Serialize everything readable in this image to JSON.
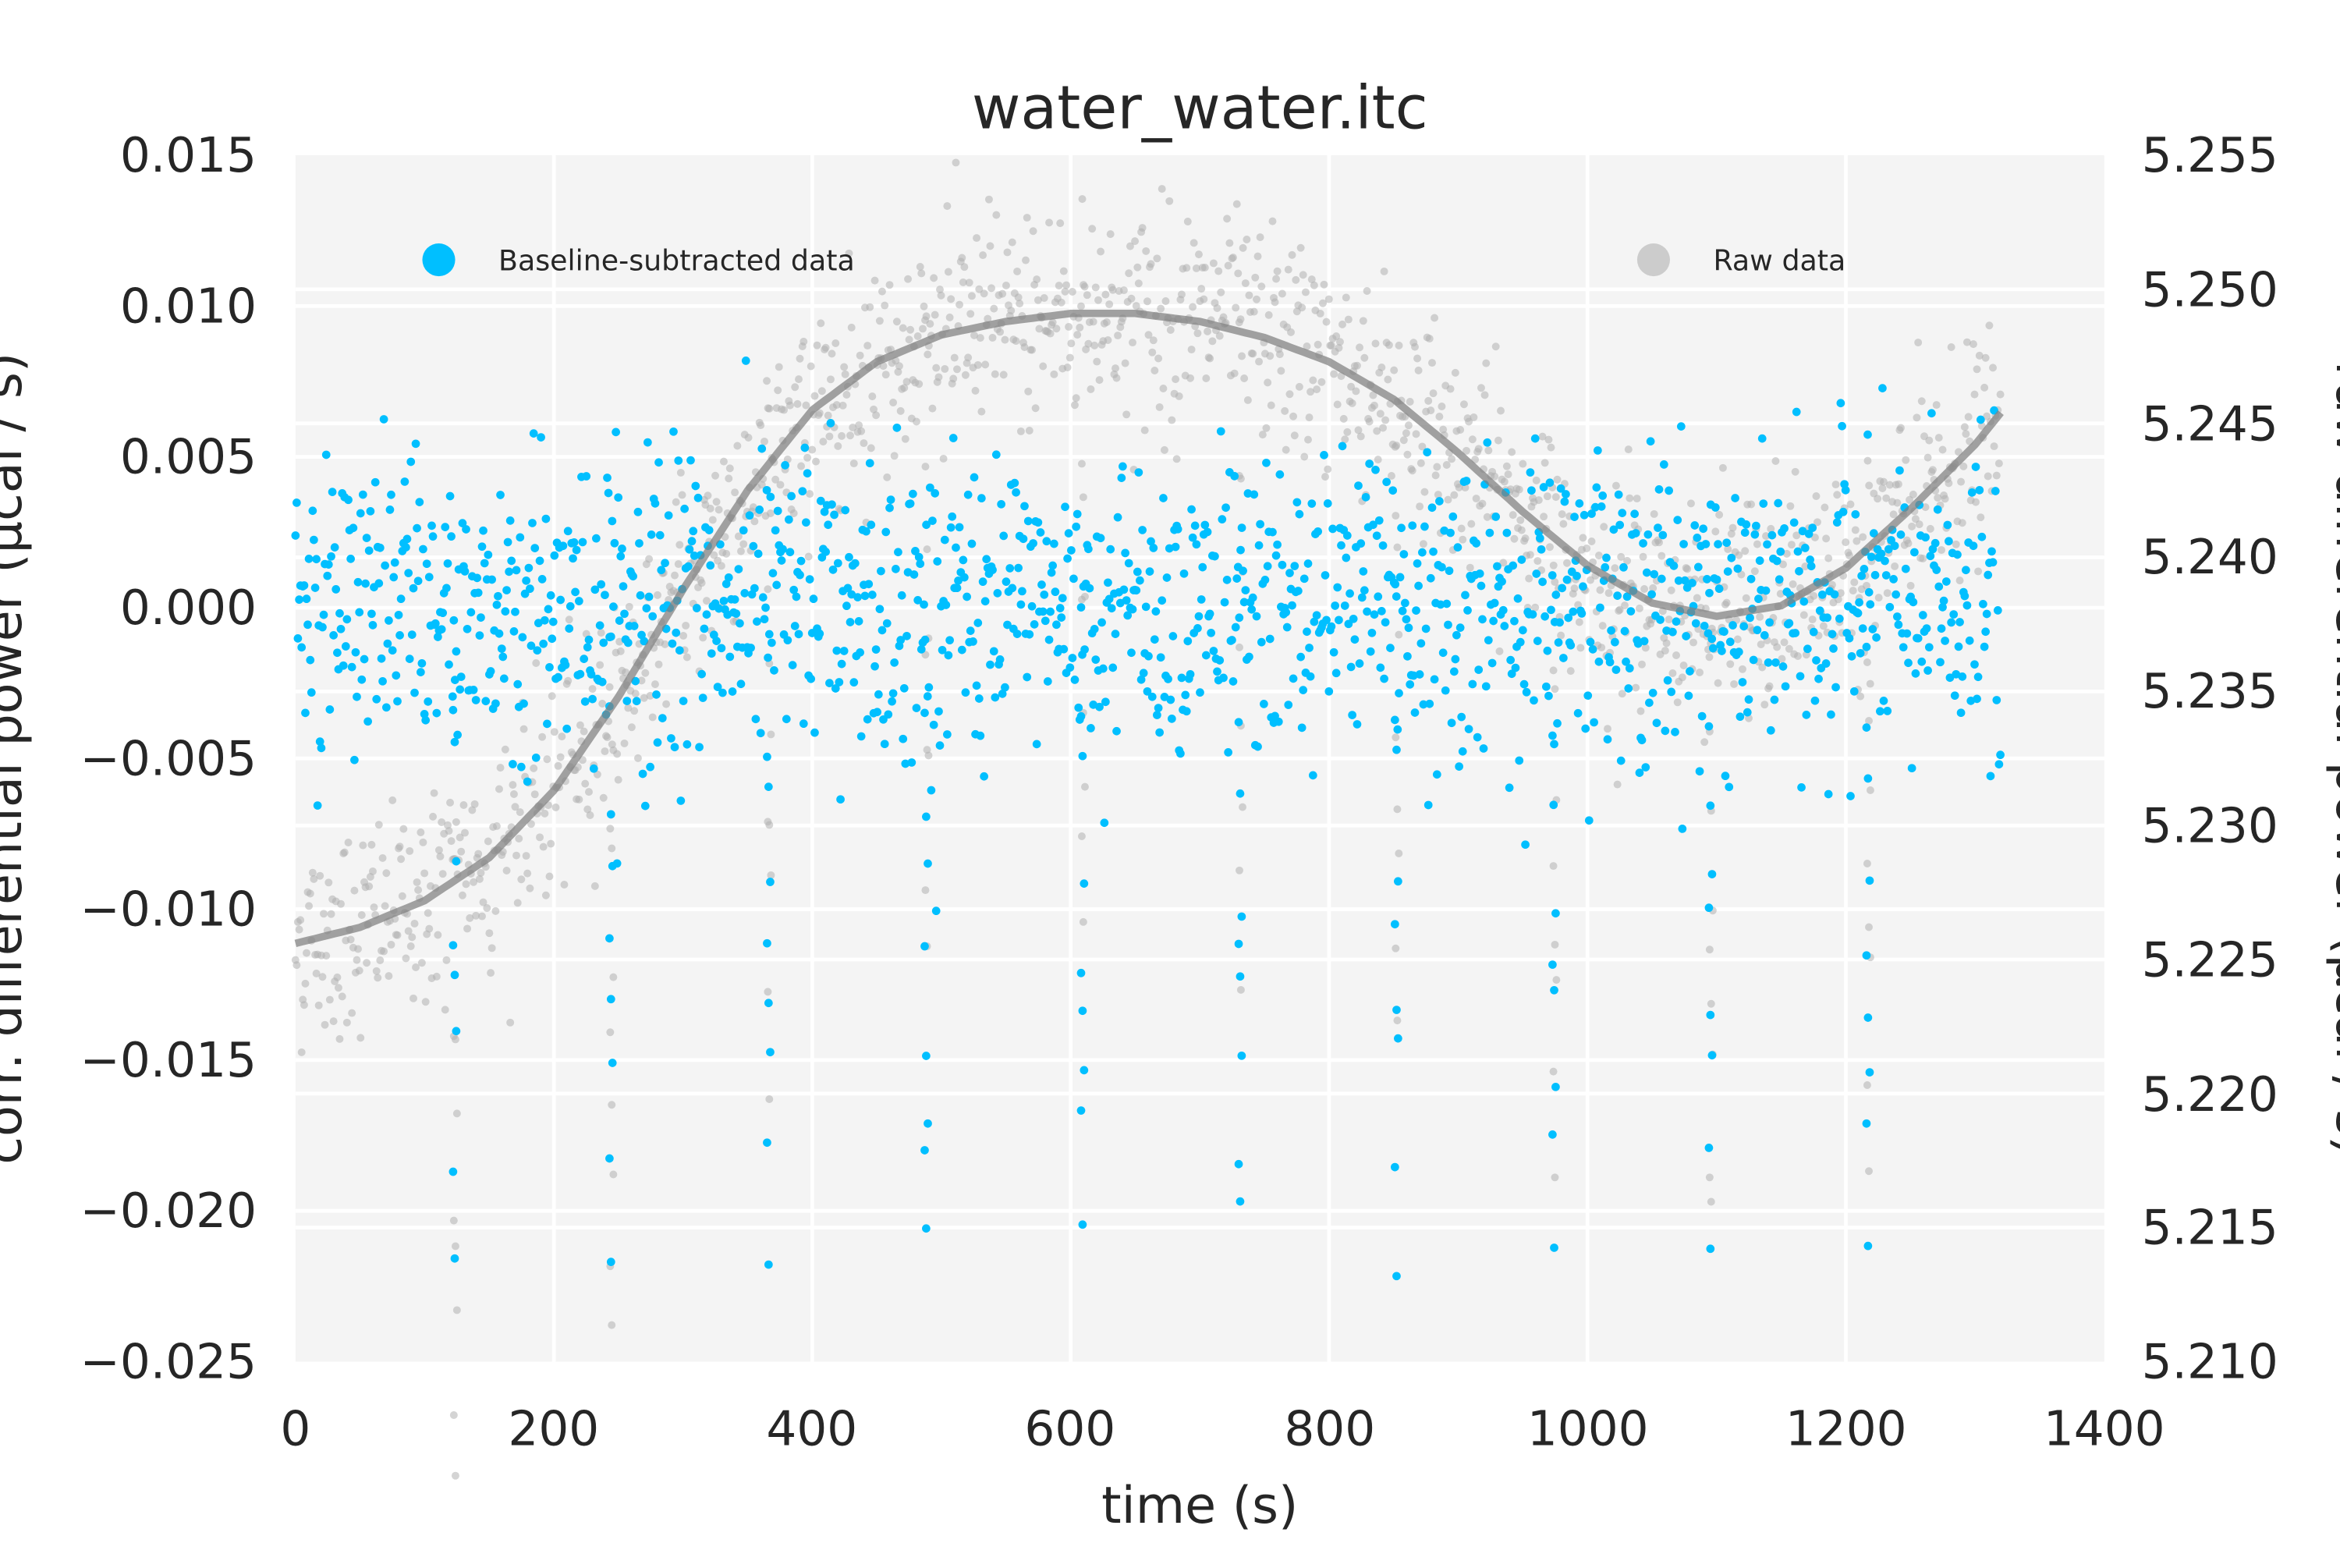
{
  "chart_data": {
    "type": "scatter",
    "title": "water_water.itc",
    "xlabel": "time (s)",
    "ylabel_left": "corr. differential power (μcal / s)",
    "ylabel_right": "raw differential power (μcal / s)",
    "xlim": [
      0,
      1400
    ],
    "ylim_left": [
      -0.025,
      0.015
    ],
    "ylim_right": [
      5.21,
      5.255
    ],
    "x_ticks": [
      "0",
      "200",
      "400",
      "600",
      "800",
      "1000",
      "1200",
      "1400"
    ],
    "y_left_ticks": [
      "0.015",
      "0.010",
      "0.005",
      "0.000",
      "−0.005",
      "−0.010",
      "−0.015",
      "−0.020",
      "−0.025"
    ],
    "y_right_ticks": [
      "5.255",
      "5.250",
      "5.245",
      "5.240",
      "5.235",
      "5.230",
      "5.225",
      "5.220",
      "5.215",
      "5.210"
    ],
    "grid": true,
    "legend": [
      {
        "label": "Baseline-subtracted data",
        "color": "#00bfff",
        "placement": "top-left"
      },
      {
        "label": "Raw data",
        "color": "#cccccc",
        "placement": "top-right"
      }
    ],
    "injection_times": [
      0,
      122,
      243,
      365,
      487,
      608,
      730,
      851,
      973,
      1094,
      1216
    ],
    "series": [
      {
        "name": "Baseline-subtracted data",
        "axis": "left",
        "color": "#00bfff",
        "noise_sd": 0.0025,
        "baseline": 0.0,
        "spike_offsets": [
          -0.004,
          -0.006,
          -0.009,
          -0.011,
          -0.013,
          -0.015,
          -0.018,
          -0.021
        ]
      },
      {
        "name": "Raw data",
        "axis": "right",
        "color": "#b0b0b0",
        "noise_sd": 0.002
      },
      {
        "name": "Baseline fit",
        "axis": "right",
        "color": "#8c8c8c",
        "x": [
          0,
          50,
          100,
          150,
          200,
          250,
          300,
          350,
          400,
          450,
          500,
          550,
          600,
          650,
          700,
          750,
          800,
          850,
          900,
          950,
          1000,
          1050,
          1100,
          1150,
          1200,
          1250,
          1300,
          1320
        ],
        "y": [
          5.2256,
          5.2262,
          5.2272,
          5.2288,
          5.2313,
          5.2348,
          5.2388,
          5.2425,
          5.2455,
          5.2473,
          5.2483,
          5.2488,
          5.2491,
          5.2491,
          5.2488,
          5.2482,
          5.2473,
          5.2459,
          5.2439,
          5.2417,
          5.2397,
          5.2383,
          5.2378,
          5.2382,
          5.2396,
          5.2418,
          5.2442,
          5.2454
        ]
      }
    ]
  }
}
